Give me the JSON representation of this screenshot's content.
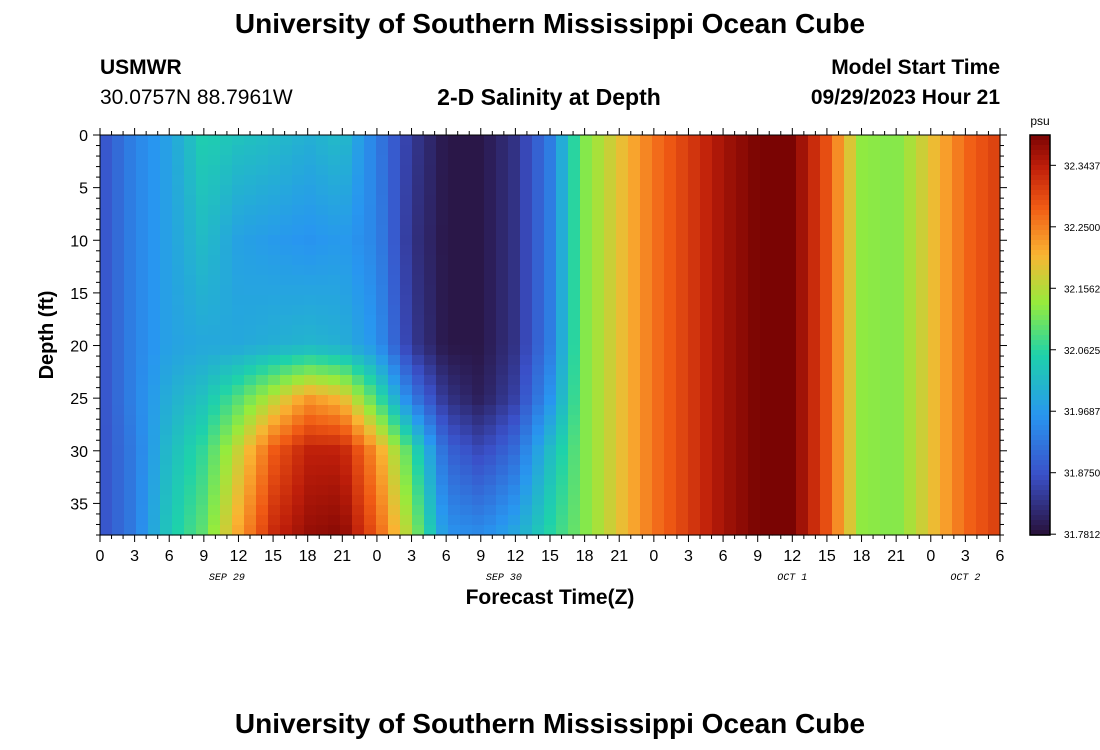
{
  "header": {
    "title_top": "University of Southern Mississippi Ocean Cube",
    "station": "USMWR",
    "coords": "30.0757N  88.7961W",
    "plot_title": "2-D Salinity at Depth",
    "model_start_label": "Model Start Time",
    "model_start_value": "09/29/2023 Hour 21",
    "title_bottom": "University of Southern Mississippi Ocean Cube"
  },
  "chart_data": {
    "type": "heatmap",
    "xlabel": "Forecast Time(Z)",
    "ylabel": "Depth (ft)",
    "x_tick_labels": [
      "0",
      "3",
      "6",
      "9",
      "12",
      "15",
      "18",
      "21",
      "0",
      "3",
      "6",
      "9",
      "12",
      "15",
      "18",
      "21",
      "0",
      "3",
      "6",
      "9",
      "12",
      "15",
      "18",
      "21",
      "0",
      "3",
      "6"
    ],
    "x_hours": [
      0,
      3,
      6,
      9,
      12,
      15,
      18,
      21,
      24,
      27,
      30,
      33,
      36,
      39,
      42,
      45,
      48,
      51,
      54,
      57,
      60,
      63,
      66,
      69,
      72,
      75,
      78
    ],
    "date_labels": [
      {
        "label": "SEP 29",
        "hour": 11
      },
      {
        "label": "SEP 30",
        "hour": 35
      },
      {
        "label": "OCT 1",
        "hour": 60
      },
      {
        "label": "OCT 2",
        "hour": 75
      }
    ],
    "y_ticks": [
      0,
      5,
      10,
      15,
      20,
      25,
      30,
      35
    ],
    "xlim": [
      0,
      78
    ],
    "ylim": [
      0,
      38
    ],
    "y_inverted": true,
    "colorbar": {
      "unit": "psu",
      "min": 31.78,
      "max": 32.39,
      "tick_values": [
        32.34375,
        32.25,
        32.15625,
        32.0625,
        31.96875,
        31.875,
        31.78125
      ],
      "tick_labels": [
        "32.3437",
        "32.2500",
        "32.1562",
        "32.0625",
        "31.9687",
        "31.8750",
        "31.7812"
      ]
    },
    "columns_hour": [
      0,
      3,
      6,
      9,
      12,
      15,
      18,
      21,
      24,
      27,
      30,
      33,
      36,
      39,
      42,
      45,
      48,
      51,
      54,
      57,
      60,
      63,
      66,
      69,
      72,
      75,
      78
    ],
    "rows_depth": [
      0,
      10,
      20,
      25,
      30,
      38
    ],
    "values": [
      [
        31.87,
        31.87,
        31.87,
        31.87,
        31.87,
        31.87
      ],
      [
        31.94,
        31.94,
        31.94,
        31.94,
        31.93,
        31.93
      ],
      [
        31.98,
        31.98,
        31.98,
        32.0,
        32.02,
        32.04
      ],
      [
        32.05,
        32.02,
        31.99,
        32.03,
        32.07,
        32.1
      ],
      [
        32.03,
        31.98,
        31.99,
        32.09,
        32.17,
        32.22
      ],
      [
        32.02,
        31.97,
        32.0,
        32.16,
        32.28,
        32.33
      ],
      [
        32.0,
        31.96,
        32.01,
        32.23,
        32.34,
        32.37
      ],
      [
        32.02,
        31.97,
        32.0,
        32.2,
        32.34,
        32.38
      ],
      [
        31.93,
        31.94,
        31.96,
        32.08,
        32.23,
        32.28
      ],
      [
        31.84,
        31.83,
        31.84,
        31.93,
        32.08,
        32.14
      ],
      [
        31.79,
        31.79,
        31.79,
        31.83,
        31.9,
        31.96
      ],
      [
        31.79,
        31.79,
        31.79,
        31.8,
        31.86,
        31.95
      ],
      [
        31.83,
        31.83,
        31.83,
        31.85,
        31.91,
        31.99
      ],
      [
        31.93,
        31.93,
        31.93,
        31.96,
        32.02,
        32.06
      ],
      [
        32.12,
        32.12,
        32.12,
        32.12,
        32.12,
        32.12
      ],
      [
        32.19,
        32.19,
        32.19,
        32.19,
        32.19,
        32.19
      ],
      [
        32.26,
        32.26,
        32.26,
        32.26,
        32.26,
        32.26
      ],
      [
        32.31,
        32.31,
        32.31,
        32.31,
        32.31,
        32.31
      ],
      [
        32.36,
        32.36,
        32.36,
        32.36,
        32.36,
        32.36
      ],
      [
        32.39,
        32.39,
        32.39,
        32.39,
        32.39,
        32.39
      ],
      [
        32.39,
        32.39,
        32.39,
        32.39,
        32.39,
        32.39
      ],
      [
        32.29,
        32.29,
        32.29,
        32.29,
        32.29,
        32.29
      ],
      [
        32.13,
        32.13,
        32.13,
        32.13,
        32.13,
        32.13
      ],
      [
        32.12,
        32.12,
        32.12,
        32.12,
        32.12,
        32.12
      ],
      [
        32.19,
        32.19,
        32.19,
        32.19,
        32.19,
        32.19
      ],
      [
        32.27,
        32.27,
        32.27,
        32.27,
        32.27,
        32.27
      ],
      [
        32.31,
        32.31,
        32.31,
        32.31,
        32.31,
        32.31
      ]
    ]
  }
}
